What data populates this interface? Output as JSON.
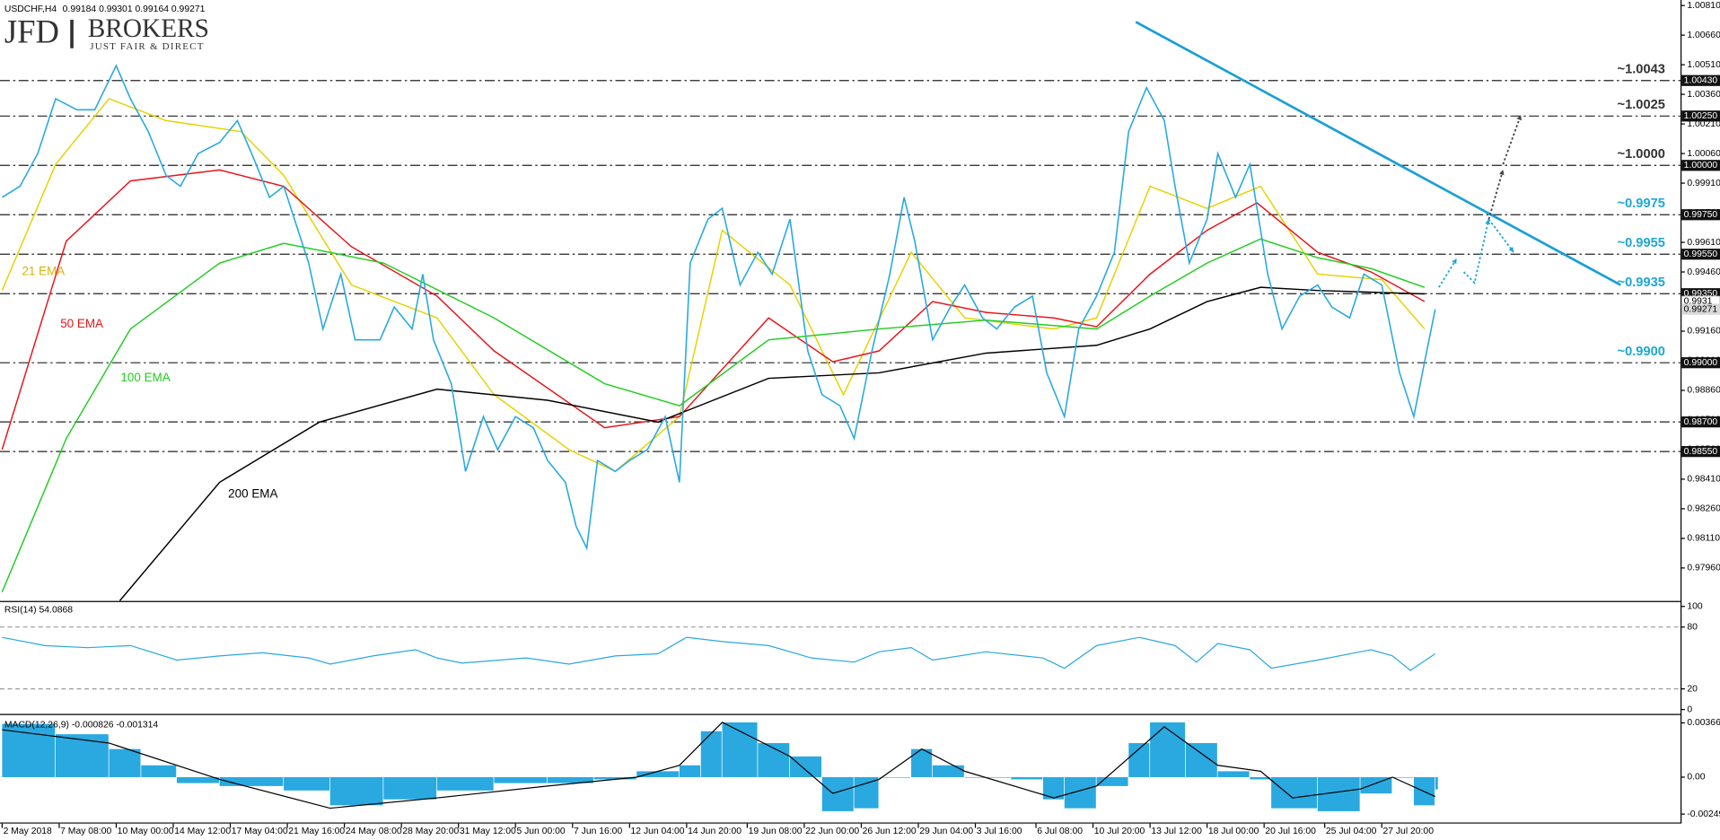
{
  "logo": {
    "brand": "JFD",
    "name": "BROKERS",
    "tagline": "JUST FAIR & DIRECT"
  },
  "chart_data": [
    {
      "type": "line",
      "title": "USDCHF,H4",
      "ohlc": [
        0.99184,
        0.99301,
        0.99164,
        0.99271
      ],
      "xlim": [
        -0.6,
        470.8
      ],
      "ylim": [
        0.97793,
        1.00838
      ],
      "xticks": [
        {
          "value": 0,
          "label": "2 May 2018"
        },
        {
          "value": 16,
          "label": "7 May 08:00"
        },
        {
          "value": 32,
          "label": "10 May 00:00"
        },
        {
          "value": 48,
          "label": "14 May 12:00"
        },
        {
          "value": 64,
          "label": "17 May 04:00"
        },
        {
          "value": 80,
          "label": "21 May 16:00"
        },
        {
          "value": 96,
          "label": "24 May 08:00"
        },
        {
          "value": 112,
          "label": "28 May 20:00"
        },
        {
          "value": 128,
          "label": "31 May 12:00"
        },
        {
          "value": 144,
          "label": "5 Jun 00:00"
        },
        {
          "value": 160,
          "label": "7 Jun 16:00"
        },
        {
          "value": 176,
          "label": "12 Jun 04:00"
        },
        {
          "value": 192,
          "label": "14 Jun 20:00"
        },
        {
          "value": 209,
          "label": "19 Jun 08:00"
        },
        {
          "value": 225,
          "label": "22 Jun 00:00"
        },
        {
          "value": 241,
          "label": "26 Jun 12:00"
        },
        {
          "value": 257,
          "label": "29 Jun 04:00"
        },
        {
          "value": 273,
          "label": "3 Jul 16:00"
        },
        {
          "value": 290,
          "label": "6 Jul 08:00"
        },
        {
          "value": 306,
          "label": "10 Jul 20:00"
        },
        {
          "value": 322,
          "label": "13 Jul 12:00"
        },
        {
          "value": 338,
          "label": "18 Jul 00:00"
        },
        {
          "value": 354,
          "label": "20 Jul 16:00"
        },
        {
          "value": 371,
          "label": "25 Jul 04:00"
        },
        {
          "value": 387,
          "label": "27 Jul 20:00"
        }
      ],
      "yticks": [
        {
          "value": 1.0081,
          "label": "1.00810"
        },
        {
          "value": 1.0066,
          "label": "1.00660"
        },
        {
          "value": 1.0051,
          "label": "1.00510"
        },
        {
          "value": 1.0036,
          "label": "1.00360"
        },
        {
          "value": 1.0021,
          "label": "1.00210"
        },
        {
          "value": 1.0006,
          "label": "1.00060"
        },
        {
          "value": 0.9991,
          "label": "0.99910"
        },
        {
          "value": 0.9976,
          "label": "0.99760"
        },
        {
          "value": 0.9961,
          "label": "0.99610"
        },
        {
          "value": 0.9946,
          "label": "0.99460"
        },
        {
          "value": 0.9931,
          "label": "0.99310"
        },
        {
          "value": 0.9916,
          "label": "0.99160"
        },
        {
          "value": 0.9901,
          "label": "0.99010"
        },
        {
          "value": 0.9886,
          "label": "0.98860"
        },
        {
          "value": 0.9871,
          "label": "0.98710"
        },
        {
          "value": 0.9856,
          "label": "0.98560"
        },
        {
          "value": 0.9841,
          "label": "0.98410"
        },
        {
          "value": 0.9826,
          "label": "0.98260"
        },
        {
          "value": 0.9811,
          "label": "0.98110"
        },
        {
          "value": 0.9796,
          "label": "0.97960"
        }
      ],
      "price": {
        "color": "#29a9e0",
        "x": [
          0,
          5,
          10,
          15,
          21,
          26,
          32,
          36,
          41,
          46,
          50,
          55,
          61,
          66,
          70,
          75,
          79,
          86,
          90,
          95,
          99,
          106,
          110,
          115,
          118,
          121,
          126,
          130,
          135,
          139,
          144,
          149,
          153,
          158,
          161,
          164,
          167,
          172,
          176,
          181,
          186,
          190,
          193,
          198,
          202,
          207,
          212,
          216,
          221,
          226,
          230,
          235,
          239,
          244,
          249,
          253,
          256,
          261,
          266,
          270,
          275,
          279,
          284,
          289,
          293,
          298,
          302,
          307,
          312,
          316,
          321,
          326,
          329,
          333,
          338,
          341,
          346,
          350,
          355,
          359,
          364,
          369,
          373,
          378,
          382,
          387,
          392,
          396,
          399,
          402
        ],
        "values": [
          0.99838,
          0.99894,
          1.0006,
          1.00338,
          1.00282,
          1.00282,
          1.00505,
          1.00338,
          1.00171,
          0.99949,
          0.99894,
          1.0006,
          1.00116,
          1.00227,
          1.0006,
          0.99838,
          0.99894,
          0.99505,
          0.99171,
          0.99449,
          0.99116,
          0.99116,
          0.99282,
          0.99171,
          0.99449,
          0.99116,
          0.98894,
          0.98449,
          0.98727,
          0.9856,
          0.98727,
          0.98671,
          0.98505,
          0.98394,
          0.98171,
          0.9806,
          0.98505,
          0.98449,
          0.98505,
          0.9856,
          0.98727,
          0.98394,
          0.99505,
          0.99727,
          0.99782,
          0.99394,
          0.9956,
          0.99449,
          0.99727,
          0.9906,
          0.98838,
          0.98782,
          0.98616,
          0.9906,
          0.99449,
          0.99838,
          0.99616,
          0.99116,
          0.99282,
          0.99394,
          0.99227,
          0.99171,
          0.99282,
          0.99338,
          0.98949,
          0.98727,
          0.99171,
          0.99338,
          0.9956,
          1.00171,
          1.00394,
          1.00227,
          0.99894,
          0.99505,
          0.99727,
          1.0006,
          0.99838,
          1.00005,
          0.99449,
          0.99171,
          0.99338,
          0.99394,
          0.99282,
          0.99227,
          0.99449,
          0.99394,
          0.98949,
          0.98727,
          0.99005,
          0.99271
        ]
      },
      "series": [
        {
          "name": "21 EMA",
          "color": "#e6d200",
          "x": [
            0,
            15,
            30,
            46,
            67,
            79,
            98,
            122,
            138,
            159,
            172,
            190,
            202,
            221,
            236,
            255,
            270,
            295,
            307,
            322,
            338,
            353,
            369,
            387,
            399
          ],
          "values": [
            0.99366,
            1.00005,
            1.00338,
            1.00227,
            1.00171,
            0.99949,
            0.99394,
            0.99227,
            0.98838,
            0.9856,
            0.98449,
            0.98727,
            0.99671,
            0.99394,
            0.98838,
            0.9956,
            0.99227,
            0.99171,
            0.99227,
            0.99894,
            0.99782,
            0.99894,
            0.99449,
            0.99421,
            0.99171
          ]
        },
        {
          "name": "50 EMA",
          "color": "#e8141a",
          "x": [
            0,
            18,
            36,
            61,
            79,
            98,
            122,
            138,
            169,
            190,
            215,
            233,
            246,
            261,
            276,
            295,
            307,
            322,
            338,
            352,
            369,
            384,
            399
          ],
          "values": [
            0.9856,
            0.99616,
            0.99921,
            0.99977,
            0.99894,
            0.99588,
            0.99338,
            0.9906,
            0.98671,
            0.98727,
            0.99227,
            0.99005,
            0.9906,
            0.9931,
            0.99255,
            0.99227,
            0.99182,
            0.99449,
            0.99671,
            0.9981,
            0.9956,
            0.9946,
            0.9931
          ]
        },
        {
          "name": "100 EMA",
          "color": "#22cc22",
          "x": [
            0,
            18,
            36,
            61,
            79,
            107,
            138,
            169,
            190,
            215,
            246,
            276,
            307,
            322,
            338,
            353,
            369,
            384,
            399
          ],
          "values": [
            0.97838,
            0.98616,
            0.99171,
            0.99505,
            0.99605,
            0.99505,
            0.99227,
            0.98894,
            0.98782,
            0.99116,
            0.99171,
            0.99216,
            0.99171,
            0.99338,
            0.99505,
            0.99627,
            0.99532,
            0.99477,
            0.99382
          ]
        },
        {
          "name": "200 EMA",
          "color": "#000000",
          "x": [
            33,
            61,
            89,
            122,
            153,
            184,
            215,
            246,
            276,
            307,
            322,
            338,
            353,
            369,
            399
          ],
          "values": [
            0.97794,
            0.98394,
            0.98699,
            0.98866,
            0.9881,
            0.98699,
            0.98921,
            0.98949,
            0.99049,
            0.99088,
            0.99171,
            0.9931,
            0.99382,
            0.99366,
            0.99349
          ]
        }
      ],
      "trendline": {
        "color": "#1a9fd6",
        "x": [
          318,
          454
        ],
        "values": [
          1.00727,
          0.99394
        ]
      },
      "projections": [
        {
          "color": "#1fa6d6",
          "x": [
            403,
            408
          ],
          "values": [
            0.99382,
            0.99527
          ]
        },
        {
          "color": "#1fa6d6",
          "x": [
            410,
            413,
            417
          ],
          "values": [
            0.9946,
            0.99405,
            0.99727
          ]
        },
        {
          "color": "#1fa6d6",
          "x": [
            417,
            424
          ],
          "values": [
            0.99727,
            0.9956
          ]
        },
        {
          "color": "#444444",
          "x": [
            417,
            421
          ],
          "values": [
            0.99727,
            0.99977
          ]
        },
        {
          "color": "#444444",
          "x": [
            421,
            426
          ],
          "values": [
            1.00005,
            1.00255
          ]
        }
      ],
      "levels": [
        {
          "value": 1.0043,
          "label": "~1.0043",
          "axis_label": "1.00430",
          "color": "#333333"
        },
        {
          "value": 1.0025,
          "label": "~1.0025",
          "axis_label": "1.00250",
          "color": "#333333"
        },
        {
          "value": 1.0,
          "label": "~1.0000",
          "axis_label": "1.00000",
          "color": "#333333"
        },
        {
          "value": 0.9975,
          "label": "~0.9975",
          "axis_label": "0.99750",
          "color": "#1fa6d6"
        },
        {
          "value": 0.9955,
          "label": "~0.9955",
          "axis_label": "0.99550",
          "color": "#1fa6d6"
        },
        {
          "value": 0.9935,
          "label": "~0.9935",
          "axis_label": "0.99350",
          "color": "#1fa6d6"
        },
        {
          "value": 0.99,
          "label": "~0.9900",
          "axis_label": "0.99000",
          "color": "#1fa6d6"
        },
        {
          "value": 0.987,
          "axis_label": "0.98700"
        },
        {
          "value": 0.9855,
          "axis_label": "0.98550"
        }
      ],
      "ema_price": 0.9931,
      "current_price": 0.99271
    },
    {
      "type": "line",
      "title": "RSI(14)",
      "reading": 54.0868,
      "color": "#29a9e0",
      "ylim": [
        0,
        100
      ],
      "yticks": [
        0,
        20,
        80,
        100
      ],
      "x": [
        0,
        12,
        24,
        36,
        49,
        61,
        73,
        86,
        92,
        104,
        116,
        122,
        129,
        147,
        159,
        172,
        184,
        192,
        202,
        215,
        227,
        239,
        246,
        255,
        261,
        276,
        292,
        298,
        307,
        319,
        329,
        335,
        341,
        350,
        356,
        369,
        384,
        390,
        395,
        402
      ],
      "values": [
        70,
        62,
        60,
        62,
        48,
        52,
        55,
        50,
        44,
        52,
        58,
        50,
        45,
        50,
        44,
        52,
        54,
        70,
        66,
        62,
        50,
        46,
        56,
        60,
        48,
        56,
        50,
        40,
        62,
        70,
        62,
        46,
        64,
        58,
        40,
        48,
        58,
        52,
        38,
        54.0868
      ]
    },
    {
      "type": "bar",
      "title": "MACD(12,26,9)",
      "readings": [
        -0.000826,
        -0.001314
      ],
      "color": "#29a9e0",
      "ylim": [
        -0.00306,
        0.0042
      ],
      "yticks": [
        0.003667,
        {
          "value": 0,
          "label": "0.00"
        },
        -0.002495
      ],
      "x": [
        0,
        15,
        30,
        39,
        49,
        61,
        79,
        92,
        107,
        122,
        138,
        153,
        166,
        178,
        190,
        196,
        202,
        212,
        221,
        230,
        239,
        246,
        255,
        261,
        270,
        283,
        292,
        298,
        307,
        316,
        322,
        332,
        341,
        350,
        356,
        369,
        381,
        390,
        396,
        402
      ],
      "values": [
        0.0036,
        0.0029,
        0.0019,
        0.0008,
        -0.0004,
        -0.0006,
        -0.0009,
        -0.0019,
        -0.0015,
        -0.0009,
        -0.0004,
        -0.0004,
        -0.00015,
        0.0004,
        0.0008,
        0.0031,
        0.0037,
        0.0023,
        0.0014,
        -0.0023,
        -0.0021,
        0,
        0.0019,
        0.0008,
        0,
        -0.00015,
        -0.0015,
        -0.0021,
        -0.0006,
        0.0023,
        0.0037,
        0.0023,
        0.0004,
        -0.00015,
        -0.0021,
        -0.0023,
        -0.0011,
        0,
        -0.0019,
        -0.000826
      ],
      "signal": {
        "color": "#000000",
        "x": [
          0,
          30,
          61,
          92,
          122,
          153,
          178,
          190,
          202,
          221,
          233,
          246,
          258,
          270,
          295,
          307,
          326,
          341,
          353,
          362,
          381,
          390,
          402
        ],
        "values": [
          0.0032,
          0.0023,
          -0.00015,
          -0.0021,
          -0.0014,
          -0.0006,
          0,
          0.0008,
          0.0037,
          0.0014,
          -0.0011,
          -0.00015,
          0.0019,
          0.0004,
          -0.0014,
          -0.0006,
          0.0034,
          0.0008,
          0.0004,
          -0.0014,
          -0.0008,
          0,
          -0.001314
        ]
      }
    }
  ]
}
